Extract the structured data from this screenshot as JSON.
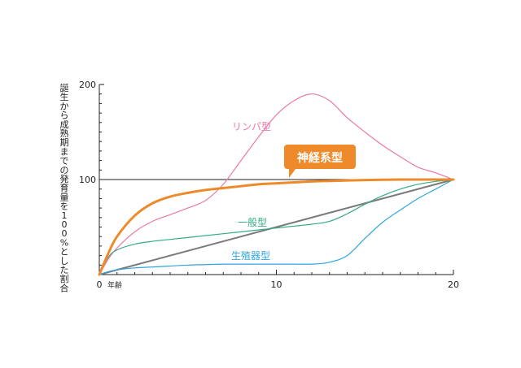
{
  "chart_data": {
    "type": "line",
    "ylabel": "誕生から成熟期までの発育量を100%とした割合",
    "xunit": "年齢",
    "xlim": [
      0,
      20
    ],
    "ylim": [
      0,
      200
    ],
    "xticks": [
      "0",
      "10",
      "20"
    ],
    "yticks": [
      "100",
      "200"
    ],
    "reference_line": 100,
    "grid": false,
    "series": [
      {
        "name": "リンパ型",
        "color": "#e97aa9",
        "x": [
          0,
          0.5,
          1,
          2,
          3,
          4,
          5,
          6,
          7,
          8,
          9,
          10,
          11,
          12,
          13,
          14,
          15,
          16,
          17,
          18,
          19,
          20
        ],
        "y": [
          0,
          16,
          28,
          45,
          56,
          63,
          70,
          78,
          95,
          120,
          145,
          168,
          183,
          190,
          183,
          165,
          150,
          136,
          124,
          113,
          107,
          100
        ]
      },
      {
        "name": "神経系型",
        "color": "#ee8a2a",
        "highlight": true,
        "x": [
          0,
          0.5,
          1,
          2,
          3,
          4,
          5,
          6,
          7,
          8,
          9,
          10,
          11,
          12,
          13,
          14,
          15,
          16,
          17,
          18,
          19,
          20
        ],
        "y": [
          0,
          22,
          40,
          62,
          75,
          82,
          86,
          89,
          91,
          93,
          95,
          96,
          97,
          98,
          98.5,
          99,
          99.5,
          99.8,
          100,
          100,
          100,
          100
        ]
      },
      {
        "name": "一般型",
        "color": "#35ab85",
        "x": [
          0,
          0.5,
          1,
          2,
          3,
          4,
          5,
          6,
          7,
          8,
          9,
          10,
          11,
          12,
          13,
          14,
          15,
          16,
          17,
          18,
          19,
          20
        ],
        "y": [
          0,
          18,
          26,
          32,
          35,
          37,
          39,
          41,
          43,
          45,
          47,
          49,
          51,
          53,
          56,
          64,
          74,
          83,
          90,
          95,
          98,
          100
        ]
      },
      {
        "name": "生殖器型",
        "color": "#2fa6dc",
        "x": [
          0,
          0.5,
          1,
          2,
          3,
          4,
          5,
          6,
          7,
          8,
          9,
          10,
          11,
          12,
          13,
          14,
          15,
          16,
          17,
          18,
          19,
          20
        ],
        "y": [
          0,
          3,
          5,
          7,
          8,
          9,
          10,
          10.5,
          11,
          11,
          11,
          11,
          11,
          11,
          13,
          20,
          38,
          55,
          68,
          80,
          90,
          100
        ]
      },
      {
        "name": "",
        "color": "#7a7a7a",
        "x": [
          0,
          20
        ],
        "y": [
          0,
          100
        ]
      }
    ]
  }
}
